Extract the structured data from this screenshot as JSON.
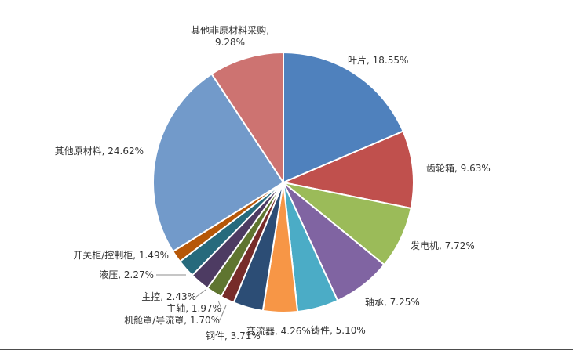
{
  "chart_data": {
    "type": "pie",
    "title": "",
    "start_angle_deg": 0,
    "direction": "clockwise",
    "legend": "none",
    "slices": [
      {
        "name": "叶片",
        "value": 18.55,
        "label": "叶片, 18.55%",
        "color": "#4F81BD"
      },
      {
        "name": "齿轮箱",
        "value": 9.63,
        "label": "齿轮箱, 9.63%",
        "color": "#C0504D"
      },
      {
        "name": "发电机",
        "value": 7.72,
        "label": "发电机, 7.72%",
        "color": "#9BBB59"
      },
      {
        "name": "轴承",
        "value": 7.25,
        "label": "轴承, 7.25%",
        "color": "#8064A2"
      },
      {
        "name": "铸件",
        "value": 5.1,
        "label": "铸件, 5.10%",
        "color": "#4BACC6"
      },
      {
        "name": "变流器",
        "value": 4.26,
        "label": "变流器, 4.26%",
        "color": "#F79646"
      },
      {
        "name": "钢件",
        "value": 3.71,
        "label": "钢件, 3.71%",
        "color": "#2C4D75"
      },
      {
        "name": "机舱罩/导流罩",
        "value": 1.7,
        "label": "机舱罩/导流罩, 1.70%",
        "color": "#772C2A"
      },
      {
        "name": "主轴",
        "value": 1.97,
        "label": "主轴, 1.97%",
        "color": "#5F7530"
      },
      {
        "name": "主控",
        "value": 2.43,
        "label": "主控, 2.43%",
        "color": "#4D3B62"
      },
      {
        "name": "液压",
        "value": 2.27,
        "label": "液压, 2.27%",
        "color": "#276A7C"
      },
      {
        "name": "开关柜/控制柜",
        "value": 1.49,
        "label": "开关柜/控制柜, 1.49%",
        "color": "#B65708"
      },
      {
        "name": "其他原材料",
        "value": 24.62,
        "label": "其他原材料, 24.62%",
        "color": "#729ACA"
      },
      {
        "name": "其他非原材料采购",
        "value": 9.28,
        "label": [
          "其他非原材料采购,",
          "9.28%"
        ],
        "color": "#CD7371"
      }
    ]
  }
}
